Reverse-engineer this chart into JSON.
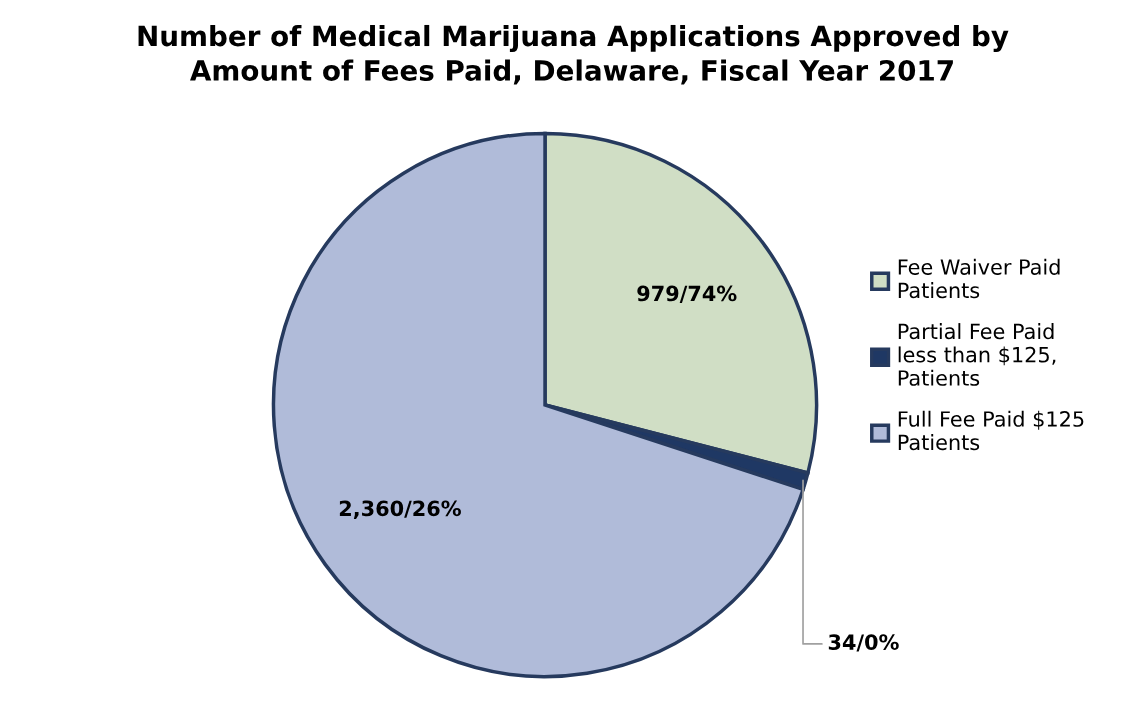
{
  "chart_data": {
    "type": "pie",
    "title": "Number of Medical Marijuana Applications Approved by\nAmount of Fees Paid, Delaware, Fiscal Year 2017",
    "categories": [
      "Fee Waiver Paid\nPatients",
      "Partial Fee Paid\nless than $125,\nPatients",
      "Full Fee Paid $125\nPatients"
    ],
    "values": [
      979,
      34,
      2360
    ],
    "colors": [
      "#d0dec5",
      "#1f3864",
      "#b0bbd9"
    ],
    "value_labels": [
      "979/74%",
      "34/0%",
      "2,360/26%"
    ],
    "legend": "right"
  }
}
